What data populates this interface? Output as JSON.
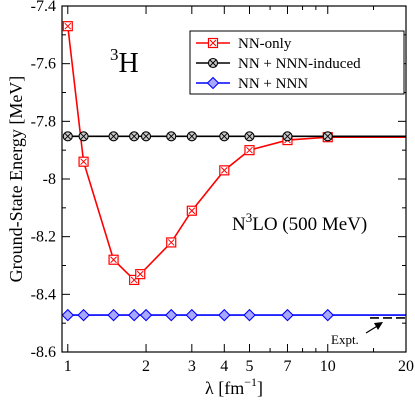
{
  "chart_data": {
    "type": "line",
    "xlabel": "λ [fm",
    "xlabel_sup": "−1",
    "xlabel_close": "]",
    "ylabel": "Ground-State Energy [MeV]",
    "xscale": "log",
    "xlim": [
      0.95,
      20
    ],
    "ylim": [
      -8.6,
      -7.4
    ],
    "xticks": [
      1,
      2,
      3,
      4,
      5,
      7,
      10,
      20
    ],
    "xtick_labels": [
      "1",
      "2",
      "3",
      "4",
      "5",
      "7",
      "10",
      "20"
    ],
    "yticks": [
      -8.6,
      -8.4,
      -8.2,
      -8.0,
      -7.8,
      -7.6,
      -7.4
    ],
    "ytick_labels": [
      "-8.6",
      "-8.4",
      "-8.2",
      "-8",
      "-7.8",
      "-7.6",
      "-7.4"
    ],
    "grid": false,
    "legend_position": "top-right",
    "nucleus_sup": "3",
    "nucleus_symbol": "H",
    "interaction_prefix": "N",
    "interaction_sup": "3",
    "interaction_suffix": "LO (500 MeV)",
    "expt_label": "Expt.",
    "expt_value": -8.482,
    "series": [
      {
        "name": "NN-only",
        "color": "#ff0000",
        "marker": "square-x",
        "x": [
          1.0,
          1.15,
          1.5,
          1.8,
          1.9,
          2.5,
          3.0,
          4.0,
          5.0,
          7.0,
          10.0,
          20.0
        ],
        "y": [
          -7.47,
          -7.94,
          -8.28,
          -8.35,
          -8.33,
          -8.22,
          -8.11,
          -7.97,
          -7.9,
          -7.865,
          -7.855,
          -7.855
        ]
      },
      {
        "name": "NN + NNN-induced",
        "color": "#000000",
        "marker": "circle-x",
        "x": [
          1.0,
          1.15,
          1.5,
          1.8,
          2.0,
          2.5,
          3.0,
          4.0,
          5.0,
          7.0,
          10.0,
          20.0
        ],
        "y": [
          -7.852,
          -7.852,
          -7.852,
          -7.852,
          -7.852,
          -7.852,
          -7.852,
          -7.852,
          -7.852,
          -7.852,
          -7.852,
          -7.852
        ]
      },
      {
        "name": "NN + NNN",
        "color": "#0000ff",
        "marker": "diamond",
        "x": [
          1.0,
          1.15,
          1.5,
          1.8,
          2.0,
          2.5,
          3.0,
          4.0,
          5.0,
          7.0,
          10.0,
          20.0
        ],
        "y": [
          -8.472,
          -8.472,
          -8.472,
          -8.472,
          -8.472,
          -8.472,
          -8.472,
          -8.472,
          -8.472,
          -8.472,
          -8.472,
          -8.472
        ]
      }
    ]
  }
}
